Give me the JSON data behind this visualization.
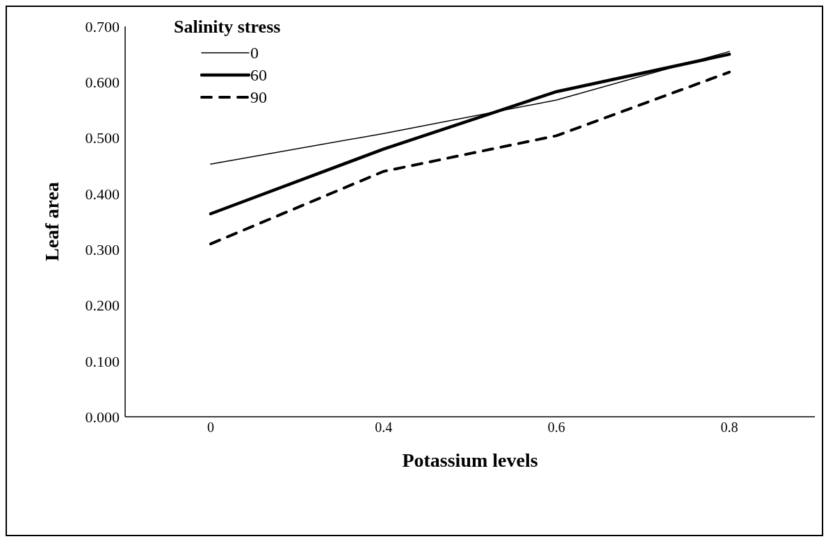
{
  "chart_data": {
    "type": "line",
    "xlabel": "Potassium levels",
    "ylabel": "Leaf area",
    "legend_title": "Salinity stress",
    "categories": [
      "0",
      "0.4",
      "0.6",
      "0.8"
    ],
    "series": [
      {
        "name": "0",
        "color": "#000000",
        "line_style": "solid",
        "values": [
          0.453,
          0.508,
          0.568,
          0.655
        ]
      },
      {
        "name": "60",
        "color": "#000000",
        "line_style": "solid",
        "values": [
          0.364,
          0.48,
          0.583,
          0.65
        ]
      },
      {
        "name": "90",
        "color": "#000000",
        "line_style": "dashed",
        "values": [
          0.31,
          0.44,
          0.504,
          0.618
        ]
      }
    ],
    "ylim": [
      0,
      0.7
    ],
    "yticks": [
      {
        "value": 0,
        "label": "0.000"
      },
      {
        "value": 0.1,
        "label": "0.100"
      },
      {
        "value": 0.2,
        "label": "0.200"
      },
      {
        "value": 0.3,
        "label": "0.300"
      },
      {
        "value": 0.4,
        "label": "0.400"
      },
      {
        "value": 0.5,
        "label": "0.500"
      },
      {
        "value": 0.6,
        "label": "0.600"
      },
      {
        "value": 0.7,
        "label": "0.700"
      }
    ],
    "grid": false,
    "legend": "top left",
    "marker": "none"
  }
}
